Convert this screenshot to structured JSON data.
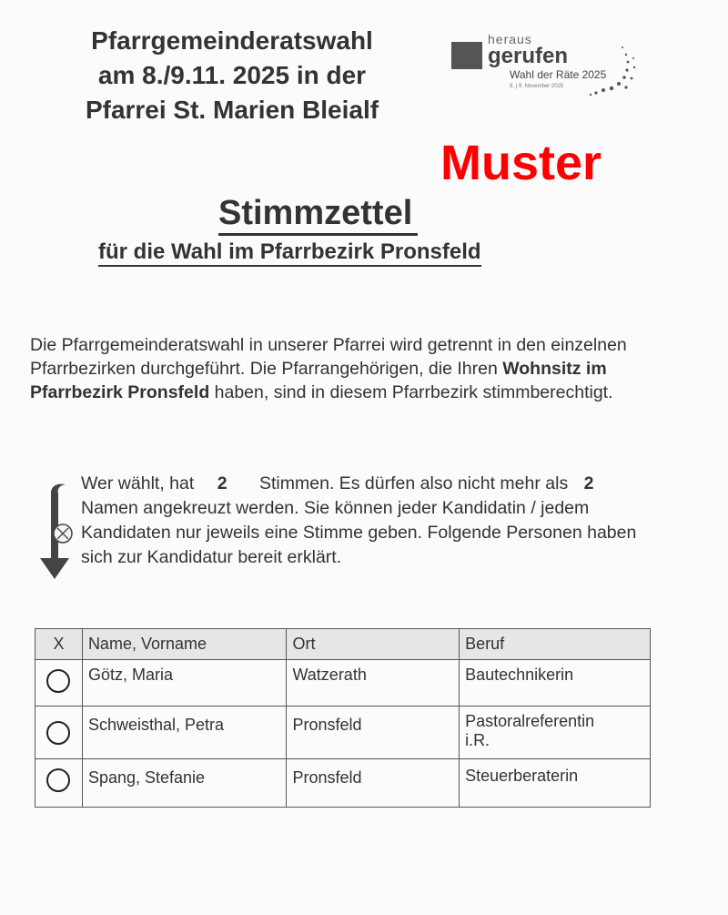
{
  "header": {
    "title_lines": [
      "Pfarrgemeinderatswahl",
      "am 8./9.11. 2025 in der",
      "Pfarrei St. Marien Bleialf"
    ]
  },
  "logo": {
    "line1": "heraus",
    "line2": "gerufen",
    "line3": "Wahl der Räte 2025",
    "line4": "8. | 9. November 2025"
  },
  "stamp": {
    "text": "Muster",
    "color": "#ff0000"
  },
  "ballot": {
    "title": "Stimmzettel",
    "subtitle": "für die Wahl im Pfarrbezirk Pronsfeld"
  },
  "intro": {
    "before": "Die Pfarrgemeinderatswahl in unserer Pfarrei wird getrennt in den einzelnen Pfarrbezirken durchgeführt. Die Pfarrangehörigen, die Ihren ",
    "bold": "Wohnsitz im Pfarrbezirk Pronsfeld",
    "after": " haben, sind in diesem Pfarrbezirk stimmberechtigt."
  },
  "instructions": {
    "p1": "Wer wählt, hat",
    "votes": "2",
    "p2": "Stimmen. Es dürfen also nicht mehr als",
    "max": "2",
    "p3": "Namen angekreuzt werden. Sie können jeder Kandidatin / jedem Kandidaten nur jeweils eine Stimme geben. Folgende Personen haben sich zur Kandidatur bereit erklärt.",
    "icons": [
      "arrow-down-icon",
      "crossed-circle-icon"
    ]
  },
  "table": {
    "headers": [
      "X",
      "Name, Vorname",
      "Ort",
      "Beruf"
    ],
    "rows": [
      {
        "name": "Götz, Maria",
        "ort": "Watzerath",
        "beruf": "Bautechnikerin",
        "checked": false
      },
      {
        "name": "Schweisthal, Petra",
        "ort": "Pronsfeld",
        "beruf": "Pastoralreferentin i.R.",
        "checked": false
      },
      {
        "name": "Spang, Stefanie",
        "ort": "Pronsfeld",
        "beruf": "Steuerberaterin",
        "checked": false
      }
    ]
  }
}
